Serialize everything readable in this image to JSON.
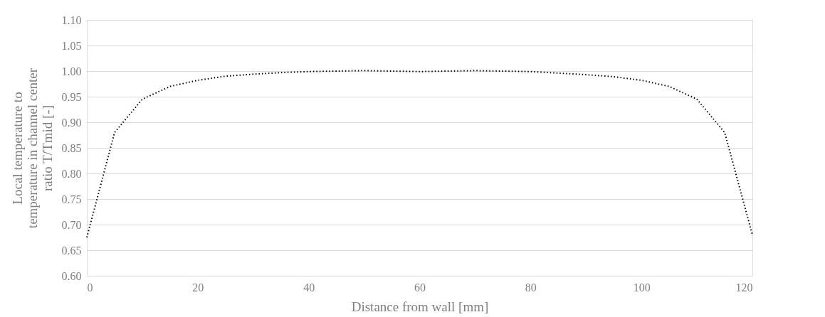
{
  "chart_data": {
    "type": "line",
    "xlabel": "Distance from wall [mm]",
    "ylabel": [
      "Local temperature to",
      "temperature in channel center",
      "ratio T/Tmid [-]"
    ],
    "x": [
      0,
      5,
      10,
      15,
      20,
      25,
      30,
      35,
      40,
      45,
      50,
      55,
      60,
      65,
      70,
      75,
      80,
      85,
      90,
      95,
      100,
      105,
      110,
      115,
      120
    ],
    "series": [
      {
        "color": "#000000",
        "values": [
          0.675,
          0.88,
          0.945,
          0.97,
          0.982,
          0.99,
          0.994,
          0.997,
          0.999,
          1.0,
          1.001,
          1.0,
          0.999,
          1.0,
          1.001,
          1.0,
          0.999,
          0.996,
          0.993,
          0.989,
          0.982,
          0.97,
          0.945,
          0.88,
          0.68
        ]
      }
    ],
    "xlim": [
      0,
      120
    ],
    "xticks": [
      0,
      20,
      40,
      60,
      80,
      100,
      120
    ],
    "ylim": [
      0.6,
      1.1
    ],
    "yticks": [
      {
        "value": 0.6,
        "label": "0.60"
      },
      0.65,
      {
        "value": 0.7,
        "label": "0.70"
      },
      0.75,
      {
        "value": 0.8,
        "label": "0.80"
      },
      0.85,
      {
        "value": 0.9,
        "label": "0.90"
      },
      0.95,
      {
        "value": 1.0,
        "label": "1.00"
      },
      1.05,
      {
        "value": 1.1,
        "label": "1.10"
      }
    ],
    "grid": "y",
    "line_style": "dotted",
    "marker": "none"
  }
}
